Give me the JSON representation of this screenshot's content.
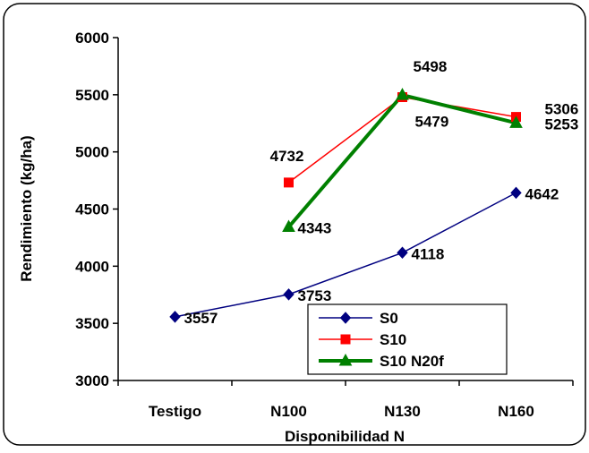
{
  "chart_data": {
    "type": "line",
    "title": "",
    "xlabel": "Disponibilidad N",
    "ylabel": "Rendimiento (kg/ha)",
    "categories": [
      "Testigo",
      "N100",
      "N130",
      "N160"
    ],
    "ylim": [
      3000,
      6000
    ],
    "yticks": [
      3000,
      3500,
      4000,
      4500,
      5000,
      5500,
      6000
    ],
    "grid": false,
    "legend_position": "bottom-right",
    "series": [
      {
        "name": "S0",
        "color": "#000080",
        "marker": "diamond",
        "width": 1.5,
        "values": [
          3557,
          3753,
          4118,
          4642
        ],
        "labels": [
          "3557",
          "3753",
          "4118",
          "4642"
        ]
      },
      {
        "name": "S10",
        "color": "#ff0000",
        "marker": "square",
        "width": 1.5,
        "values": [
          null,
          4732,
          5479,
          5306
        ],
        "labels": [
          null,
          "4732",
          "5479",
          "5306"
        ]
      },
      {
        "name": "S10 N20f",
        "color": "#008000",
        "marker": "triangle",
        "width": 4,
        "values": [
          null,
          4343,
          5498,
          5253
        ],
        "labels": [
          null,
          "4343",
          "5498",
          "5253"
        ]
      }
    ]
  }
}
